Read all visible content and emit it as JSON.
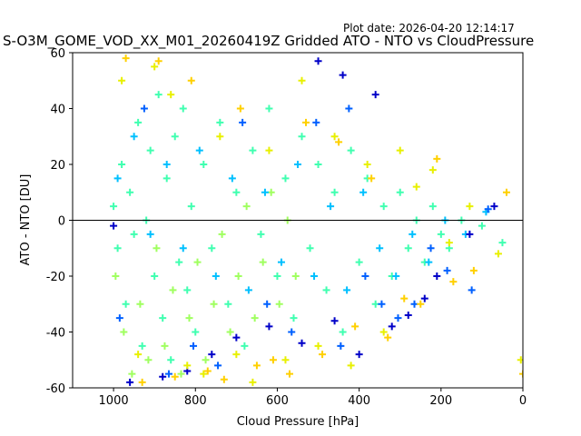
{
  "chart_data": {
    "type": "scatter",
    "title": "S-O3M_GOME_VOD_XX_M01_20260419Z Gridded ATO - NTO vs CloudPressure",
    "subtitle": "Plot date: 2026-04-20 12:14:17",
    "xlabel": "Cloud Pressure [hPa]",
    "ylabel": "ATO - NTO [DU]",
    "xlim": [
      1100,
      0
    ],
    "ylim": [
      -60,
      60
    ],
    "x_ticks": [
      1000,
      800,
      600,
      400,
      200,
      0
    ],
    "y_ticks": [
      -60,
      -40,
      -20,
      0,
      20,
      40,
      60
    ],
    "reference_line_y": 0,
    "grid": false,
    "marker": "plus",
    "colors": [
      "#0000c8",
      "#0060ff",
      "#00c0ff",
      "#40ffb0",
      "#a0ff60",
      "#e8f000",
      "#ffd000"
    ],
    "series": [
      {
        "color": "#40ffb0",
        "points": [
          [
            1000,
            5
          ],
          [
            990,
            -10
          ],
          [
            980,
            20
          ],
          [
            970,
            -30
          ],
          [
            960,
            10
          ],
          [
            950,
            -5
          ],
          [
            940,
            35
          ],
          [
            930,
            -45
          ],
          [
            920,
            0
          ],
          [
            910,
            25
          ],
          [
            900,
            -20
          ],
          [
            890,
            45
          ],
          [
            880,
            -35
          ],
          [
            870,
            15
          ],
          [
            860,
            -50
          ],
          [
            850,
            30
          ],
          [
            840,
            -15
          ],
          [
            830,
            40
          ],
          [
            820,
            -25
          ],
          [
            810,
            5
          ],
          [
            800,
            -40
          ],
          [
            780,
            20
          ],
          [
            760,
            -10
          ],
          [
            740,
            35
          ],
          [
            720,
            -30
          ],
          [
            700,
            10
          ],
          [
            680,
            -45
          ],
          [
            660,
            25
          ],
          [
            640,
            -5
          ],
          [
            620,
            40
          ],
          [
            600,
            -20
          ],
          [
            580,
            15
          ],
          [
            560,
            -35
          ],
          [
            540,
            30
          ],
          [
            520,
            -10
          ],
          [
            500,
            20
          ],
          [
            480,
            -25
          ],
          [
            460,
            10
          ],
          [
            440,
            -40
          ],
          [
            420,
            25
          ],
          [
            400,
            -15
          ],
          [
            380,
            15
          ],
          [
            360,
            -30
          ],
          [
            340,
            5
          ],
          [
            320,
            -20
          ],
          [
            300,
            10
          ],
          [
            280,
            -10
          ],
          [
            260,
            0
          ],
          [
            240,
            -15
          ],
          [
            220,
            5
          ],
          [
            200,
            -5
          ],
          [
            180,
            -10
          ],
          [
            150,
            0
          ],
          [
            100,
            -2
          ],
          [
            50,
            -8
          ]
        ]
      },
      {
        "color": "#a0ff60",
        "points": [
          [
            995,
            -20
          ],
          [
            975,
            -40
          ],
          [
            955,
            -55
          ],
          [
            935,
            -30
          ],
          [
            915,
            -50
          ],
          [
            895,
            -10
          ],
          [
            875,
            -45
          ],
          [
            855,
            -25
          ],
          [
            835,
            -55
          ],
          [
            815,
            -35
          ],
          [
            795,
            -15
          ],
          [
            775,
            -50
          ],
          [
            755,
            -30
          ],
          [
            735,
            -5
          ],
          [
            715,
            -40
          ],
          [
            695,
            -20
          ],
          [
            675,
            5
          ],
          [
            655,
            -35
          ],
          [
            635,
            -15
          ],
          [
            615,
            10
          ],
          [
            595,
            -30
          ],
          [
            575,
            0
          ],
          [
            555,
            -20
          ]
        ]
      },
      {
        "color": "#00c0ff",
        "points": [
          [
            990,
            15
          ],
          [
            950,
            30
          ],
          [
            910,
            -5
          ],
          [
            870,
            20
          ],
          [
            830,
            -10
          ],
          [
            790,
            25
          ],
          [
            750,
            -20
          ],
          [
            710,
            15
          ],
          [
            670,
            -25
          ],
          [
            630,
            10
          ],
          [
            590,
            -15
          ],
          [
            550,
            20
          ],
          [
            510,
            -20
          ],
          [
            470,
            5
          ],
          [
            430,
            -25
          ],
          [
            390,
            10
          ],
          [
            350,
            -10
          ],
          [
            310,
            -20
          ],
          [
            270,
            -5
          ],
          [
            230,
            -15
          ],
          [
            190,
            0
          ],
          [
            140,
            -5
          ],
          [
            90,
            3
          ]
        ]
      },
      {
        "color": "#0060ff",
        "points": [
          [
            985,
            -35
          ],
          [
            925,
            40
          ],
          [
            865,
            -55
          ],
          [
            805,
            -45
          ],
          [
            745,
            -52
          ],
          [
            685,
            35
          ],
          [
            625,
            -30
          ],
          [
            565,
            -40
          ],
          [
            505,
            35
          ],
          [
            445,
            -45
          ],
          [
            425,
            40
          ],
          [
            385,
            -20
          ],
          [
            345,
            -30
          ],
          [
            305,
            -35
          ],
          [
            265,
            -30
          ],
          [
            225,
            -10
          ],
          [
            185,
            -18
          ],
          [
            125,
            -25
          ],
          [
            85,
            4
          ]
        ]
      },
      {
        "color": "#0000c8",
        "points": [
          [
            1000,
            -2
          ],
          [
            960,
            -58
          ],
          [
            880,
            -56
          ],
          [
            820,
            -54
          ],
          [
            760,
            -48
          ],
          [
            700,
            -42
          ],
          [
            620,
            -38
          ],
          [
            540,
            -44
          ],
          [
            500,
            57
          ],
          [
            460,
            -36
          ],
          [
            440,
            52
          ],
          [
            400,
            -48
          ],
          [
            360,
            45
          ],
          [
            320,
            -38
          ],
          [
            280,
            -34
          ],
          [
            240,
            -28
          ],
          [
            210,
            -20
          ],
          [
            130,
            -5
          ],
          [
            70,
            5
          ]
        ]
      },
      {
        "color": "#e8f000",
        "points": [
          [
            980,
            50
          ],
          [
            940,
            -48
          ],
          [
            900,
            55
          ],
          [
            860,
            45
          ],
          [
            820,
            -52
          ],
          [
            780,
            -55
          ],
          [
            740,
            30
          ],
          [
            700,
            -48
          ],
          [
            660,
            -58
          ],
          [
            620,
            25
          ],
          [
            580,
            -50
          ],
          [
            540,
            50
          ],
          [
            500,
            -45
          ],
          [
            460,
            30
          ],
          [
            420,
            -52
          ],
          [
            380,
            20
          ],
          [
            340,
            -40
          ],
          [
            300,
            25
          ],
          [
            260,
            12
          ],
          [
            220,
            18
          ],
          [
            180,
            -8
          ],
          [
            130,
            5
          ],
          [
            60,
            -12
          ],
          [
            5,
            -50
          ]
        ]
      },
      {
        "color": "#ffd000",
        "points": [
          [
            970,
            58
          ],
          [
            930,
            -58
          ],
          [
            890,
            57
          ],
          [
            850,
            -56
          ],
          [
            810,
            50
          ],
          [
            770,
            -54
          ],
          [
            730,
            -57
          ],
          [
            690,
            40
          ],
          [
            650,
            -52
          ],
          [
            610,
            -50
          ],
          [
            570,
            -55
          ],
          [
            530,
            35
          ],
          [
            490,
            -48
          ],
          [
            450,
            28
          ],
          [
            410,
            -38
          ],
          [
            370,
            15
          ],
          [
            330,
            -42
          ],
          [
            290,
            -28
          ],
          [
            250,
            -30
          ],
          [
            210,
            22
          ],
          [
            170,
            -22
          ],
          [
            120,
            -18
          ],
          [
            40,
            10
          ],
          [
            0,
            -55
          ]
        ]
      }
    ]
  }
}
